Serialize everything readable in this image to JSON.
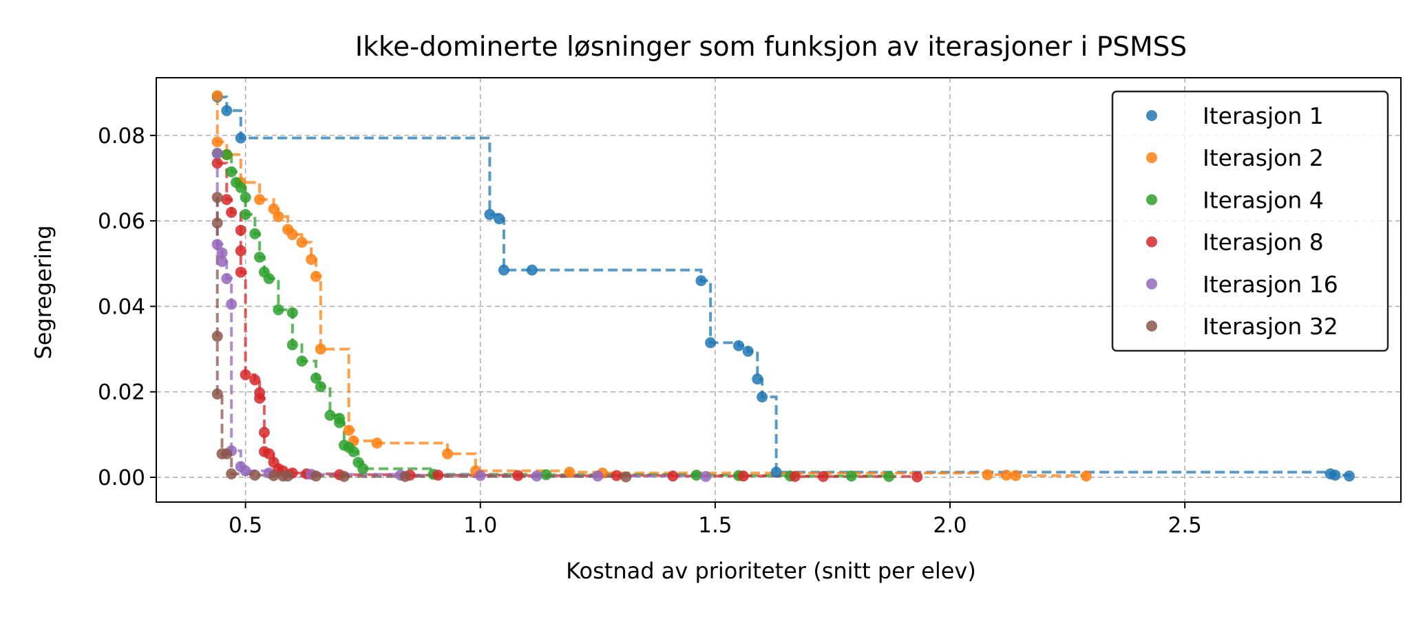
{
  "chart_data": {
    "type": "scatter",
    "title": "Ikke-dominerte løsninger som funksjon av iterasjoner i PSMSS",
    "xlabel": "Kostnad av prioriteter (snitt per elev)",
    "ylabel": "Segregering",
    "xlim": [
      0.31,
      2.96
    ],
    "ylim": [
      -0.0058,
      0.0935
    ],
    "xticks": [
      0.5,
      1.0,
      1.5,
      2.0,
      2.5
    ],
    "xtick_labels": [
      "0.5",
      "1.0",
      "1.5",
      "2.0",
      "2.5"
    ],
    "yticks": [
      0.0,
      0.02,
      0.04,
      0.06,
      0.08
    ],
    "ytick_labels": [
      "0.00",
      "0.02",
      "0.04",
      "0.06",
      "0.08"
    ],
    "grid": true,
    "legend_position": "top-right",
    "step_lines": "dashed",
    "series": [
      {
        "name": "Iterasjon 1",
        "color": "#1f77b4",
        "points": [
          [
            0.44,
            0.089
          ],
          [
            0.46,
            0.0858
          ],
          [
            0.49,
            0.0794
          ],
          [
            1.02,
            0.0615
          ],
          [
            1.04,
            0.0605
          ],
          [
            1.05,
            0.0485
          ],
          [
            1.11,
            0.0485
          ],
          [
            1.47,
            0.046
          ],
          [
            1.49,
            0.0315
          ],
          [
            1.55,
            0.0308
          ],
          [
            1.57,
            0.0295
          ],
          [
            1.59,
            0.023
          ],
          [
            1.6,
            0.0188
          ],
          [
            1.63,
            0.0012
          ],
          [
            2.81,
            0.0008
          ],
          [
            2.82,
            0.0005
          ],
          [
            2.85,
            0.0003
          ]
        ]
      },
      {
        "name": "Iterasjon 2",
        "color": "#ff7f0e",
        "points": [
          [
            0.44,
            0.0893
          ],
          [
            0.44,
            0.0785
          ],
          [
            0.46,
            0.0755
          ],
          [
            0.49,
            0.069
          ],
          [
            0.53,
            0.065
          ],
          [
            0.56,
            0.0628
          ],
          [
            0.57,
            0.061
          ],
          [
            0.59,
            0.058
          ],
          [
            0.6,
            0.0568
          ],
          [
            0.62,
            0.055
          ],
          [
            0.64,
            0.051
          ],
          [
            0.65,
            0.047
          ],
          [
            0.66,
            0.03
          ],
          [
            0.72,
            0.011
          ],
          [
            0.73,
            0.0085
          ],
          [
            0.78,
            0.008
          ],
          [
            0.93,
            0.0055
          ],
          [
            0.99,
            0.0015
          ],
          [
            1.19,
            0.0012
          ],
          [
            1.26,
            0.001
          ],
          [
            2.08,
            0.0006
          ],
          [
            2.12,
            0.0005
          ],
          [
            2.14,
            0.0004
          ],
          [
            2.29,
            0.0003
          ]
        ]
      },
      {
        "name": "Iterasjon 4",
        "color": "#2ca02c",
        "points": [
          [
            0.44,
            0.0758
          ],
          [
            0.46,
            0.0755
          ],
          [
            0.47,
            0.0715
          ],
          [
            0.48,
            0.069
          ],
          [
            0.49,
            0.0678
          ],
          [
            0.5,
            0.0655
          ],
          [
            0.5,
            0.0615
          ],
          [
            0.52,
            0.057
          ],
          [
            0.53,
            0.0515
          ],
          [
            0.54,
            0.048
          ],
          [
            0.55,
            0.0465
          ],
          [
            0.57,
            0.0392
          ],
          [
            0.6,
            0.0385
          ],
          [
            0.6,
            0.031
          ],
          [
            0.62,
            0.0272
          ],
          [
            0.65,
            0.0232
          ],
          [
            0.66,
            0.0212
          ],
          [
            0.68,
            0.0145
          ],
          [
            0.7,
            0.0138
          ],
          [
            0.7,
            0.0128
          ],
          [
            0.71,
            0.0075
          ],
          [
            0.72,
            0.007
          ],
          [
            0.73,
            0.006
          ],
          [
            0.74,
            0.0035
          ],
          [
            0.75,
            0.002
          ],
          [
            0.9,
            0.0007
          ],
          [
            1.14,
            0.0006
          ],
          [
            1.46,
            0.0005
          ],
          [
            1.55,
            0.0004
          ],
          [
            1.66,
            0.0003
          ],
          [
            1.79,
            0.0003
          ],
          [
            1.87,
            0.0002
          ]
        ]
      },
      {
        "name": "Iterasjon 8",
        "color": "#d62728",
        "points": [
          [
            0.44,
            0.0735
          ],
          [
            0.46,
            0.065
          ],
          [
            0.47,
            0.062
          ],
          [
            0.49,
            0.0578
          ],
          [
            0.49,
            0.053
          ],
          [
            0.49,
            0.048
          ],
          [
            0.5,
            0.024
          ],
          [
            0.52,
            0.0228
          ],
          [
            0.53,
            0.0198
          ],
          [
            0.53,
            0.0185
          ],
          [
            0.54,
            0.0105
          ],
          [
            0.54,
            0.006
          ],
          [
            0.55,
            0.0055
          ],
          [
            0.56,
            0.0035
          ],
          [
            0.57,
            0.002
          ],
          [
            0.58,
            0.0015
          ],
          [
            0.6,
            0.001
          ],
          [
            0.63,
            0.0008
          ],
          [
            0.7,
            0.0006
          ],
          [
            0.85,
            0.0005
          ],
          [
            0.91,
            0.0005
          ],
          [
            1.08,
            0.0004
          ],
          [
            1.29,
            0.0004
          ],
          [
            1.41,
            0.0003
          ],
          [
            1.56,
            0.0003
          ],
          [
            1.67,
            0.0002
          ],
          [
            1.73,
            0.0002
          ],
          [
            1.93,
            0.0001
          ]
        ]
      },
      {
        "name": "Iterasjon 16",
        "color": "#9467bd",
        "points": [
          [
            0.44,
            0.0758
          ],
          [
            0.44,
            0.0545
          ],
          [
            0.45,
            0.0525
          ],
          [
            0.45,
            0.0505
          ],
          [
            0.46,
            0.0465
          ],
          [
            0.47,
            0.0405
          ],
          [
            0.47,
            0.0062
          ],
          [
            0.49,
            0.0025
          ],
          [
            0.5,
            0.0015
          ],
          [
            0.55,
            0.001
          ],
          [
            0.64,
            0.0007
          ],
          [
            0.83,
            0.0005
          ],
          [
            1.0,
            0.0004
          ],
          [
            1.12,
            0.0003
          ],
          [
            1.25,
            0.0003
          ],
          [
            1.48,
            0.0002
          ]
        ]
      },
      {
        "name": "Iterasjon 32",
        "color": "#8c564b",
        "points": [
          [
            0.44,
            0.0655
          ],
          [
            0.44,
            0.0595
          ],
          [
            0.44,
            0.033
          ],
          [
            0.44,
            0.0195
          ],
          [
            0.45,
            0.0055
          ],
          [
            0.46,
            0.0055
          ],
          [
            0.47,
            0.0008
          ],
          [
            0.52,
            0.0005
          ],
          [
            0.56,
            0.0004
          ],
          [
            0.58,
            0.0003
          ],
          [
            0.59,
            0.0003
          ],
          [
            0.65,
            0.0003
          ],
          [
            0.71,
            0.0002
          ],
          [
            0.84,
            0.0002
          ],
          [
            1.31,
            0.0001
          ]
        ]
      }
    ]
  }
}
